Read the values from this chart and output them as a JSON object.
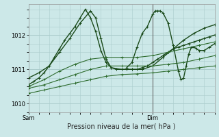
{
  "title": "Pression niveau de la mer( hPa )",
  "bg_color": "#cce8e8",
  "grid_color": "#aacccc",
  "line_color_light": "#2d6b2d",
  "line_color_dark": "#1a4a1a",
  "ylim": [
    1009.75,
    1012.9
  ],
  "yticks": [
    1010,
    1011,
    1012
  ],
  "xlim": [
    0,
    36
  ],
  "xtick_sam": 0,
  "xtick_dim": 24,
  "vline_x": 24,
  "series": [
    {
      "xs": [
        0,
        1,
        2,
        3,
        4,
        5,
        6,
        7,
        8,
        9,
        10,
        11,
        12,
        13,
        14,
        15,
        16,
        17,
        18,
        19,
        20,
        21,
        22,
        23,
        24,
        25,
        26,
        27,
        28,
        29,
        30,
        31,
        32,
        33,
        34,
        35,
        36
      ],
      "ys": [
        1010.55,
        1010.65,
        1010.75,
        1010.9,
        1011.1,
        1011.35,
        1011.6,
        1011.85,
        1012.05,
        1012.25,
        1012.5,
        1012.75,
        1012.5,
        1012.1,
        1011.55,
        1011.2,
        1011.05,
        1011.0,
        1011.0,
        1011.0,
        1011.0,
        1011.0,
        1011.05,
        1011.1,
        1011.2,
        1011.3,
        1011.4,
        1011.5,
        1011.6,
        1011.65,
        1011.7,
        1011.75,
        1011.8,
        1011.85,
        1011.9,
        1011.95,
        1012.0
      ],
      "color": "#1a4a1a",
      "lw": 1.0
    },
    {
      "xs": [
        0,
        2,
        4,
        6,
        8,
        10,
        12,
        13,
        14,
        15,
        16,
        18,
        20,
        22,
        24,
        26,
        28,
        30,
        32,
        34,
        36
      ],
      "ys": [
        1010.75,
        1010.9,
        1011.1,
        1011.5,
        1011.9,
        1012.35,
        1012.7,
        1012.5,
        1011.9,
        1011.3,
        1011.05,
        1011.0,
        1011.0,
        1011.0,
        1011.1,
        1011.35,
        1011.6,
        1011.85,
        1012.05,
        1012.2,
        1012.3
      ],
      "color": "#1a4a1a",
      "lw": 1.0
    },
    {
      "xs": [
        0,
        3,
        6,
        9,
        12,
        15,
        18,
        21,
        24,
        27,
        30,
        33,
        36
      ],
      "ys": [
        1010.5,
        1010.7,
        1010.95,
        1011.15,
        1011.3,
        1011.35,
        1011.35,
        1011.35,
        1011.4,
        1011.5,
        1011.6,
        1011.7,
        1011.8
      ],
      "color": "#2d6b2d",
      "lw": 0.8
    },
    {
      "xs": [
        0,
        3,
        6,
        9,
        12,
        15,
        18,
        21,
        24,
        27,
        30,
        33,
        36
      ],
      "ys": [
        1010.45,
        1010.55,
        1010.7,
        1010.85,
        1011.0,
        1011.1,
        1011.1,
        1011.1,
        1011.1,
        1011.15,
        1011.2,
        1011.3,
        1011.4
      ],
      "color": "#2d6b2d",
      "lw": 0.8
    },
    {
      "xs": [
        0,
        3,
        6,
        9,
        12,
        15,
        18,
        21,
        24,
        27,
        30,
        33,
        36
      ],
      "ys": [
        1010.3,
        1010.4,
        1010.5,
        1010.6,
        1010.7,
        1010.8,
        1010.85,
        1010.87,
        1010.9,
        1010.95,
        1011.0,
        1011.05,
        1011.1
      ],
      "color": "#2d6b2d",
      "lw": 0.8
    },
    {
      "xs": [
        19,
        20,
        21,
        22,
        23,
        24,
        24.5,
        25,
        25.5,
        26,
        27,
        28,
        29,
        29.5,
        30,
        30.5,
        31,
        31.5,
        32,
        32.5,
        33,
        34,
        35,
        36
      ],
      "ys": [
        1011.05,
        1011.2,
        1011.65,
        1012.05,
        1012.25,
        1012.6,
        1012.7,
        1012.7,
        1012.7,
        1012.65,
        1012.35,
        1011.7,
        1010.95,
        1010.7,
        1010.75,
        1011.1,
        1011.45,
        1011.65,
        1011.65,
        1011.6,
        1011.55,
        1011.55,
        1011.65,
        1011.75
      ],
      "color": "#1a4a1a",
      "lw": 1.0
    }
  ],
  "ylabel_fontsize": 6,
  "xlabel_fontsize": 7,
  "tick_fontsize": 6
}
